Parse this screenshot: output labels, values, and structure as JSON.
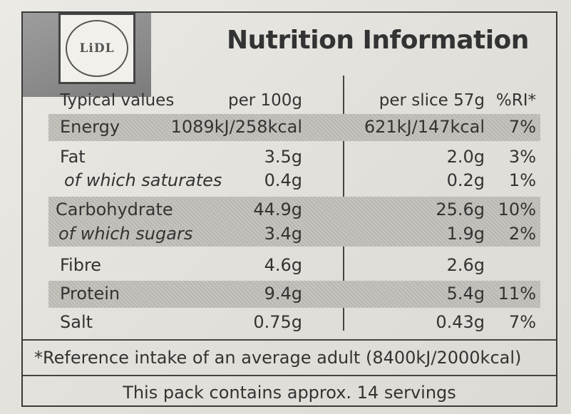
{
  "brand": {
    "logo_text": "LiDL"
  },
  "title": "Nutrition Information",
  "table": {
    "header": {
      "label": "Typical values",
      "per100": "per 100g",
      "perslice": "per slice 57g",
      "ri": "%RI*"
    },
    "rows": [
      {
        "label": "Energy",
        "per100": "1089kJ/258kcal",
        "perslice": "621kJ/147kcal",
        "ri": "7%"
      },
      {
        "label": "Fat",
        "per100": "3.5g",
        "perslice": "2.0g",
        "ri": "3%"
      },
      {
        "label": "of which saturates",
        "per100": "0.4g",
        "perslice": "0.2g",
        "ri": "1%"
      },
      {
        "label": "Carbohydrate",
        "per100": "44.9g",
        "perslice": "25.6g",
        "ri": "10%"
      },
      {
        "label": "of which sugars",
        "per100": "3.4g",
        "perslice": "1.9g",
        "ri": "2%"
      },
      {
        "label": "Fibre",
        "per100": "4.6g",
        "perslice": "2.6g",
        "ri": ""
      },
      {
        "label": "Protein",
        "per100": "9.4g",
        "perslice": "5.4g",
        "ri": "11%"
      },
      {
        "label": "Salt",
        "per100": "0.75g",
        "perslice": "0.43g",
        "ri": "7%"
      }
    ]
  },
  "footnote": "*Reference intake of an average adult (8400kJ/2000kcal)",
  "servings": "This pack contains approx. 14 servings"
}
